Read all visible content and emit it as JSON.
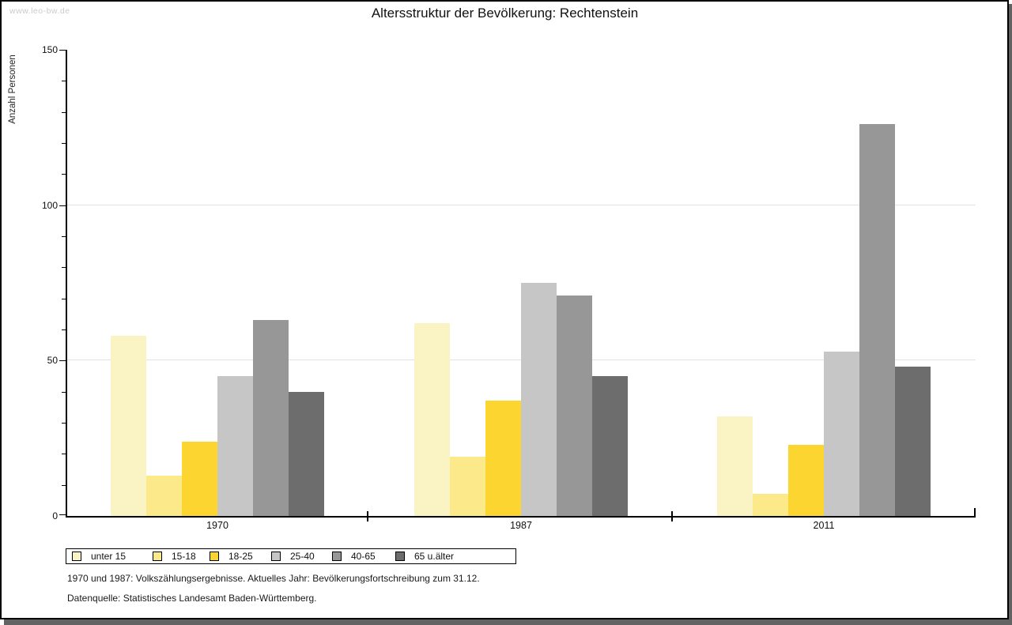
{
  "watermark": "www.leo-bw.de",
  "header": {
    "title": "Altersstruktur der Bevölkerung: Rechtenstein"
  },
  "chart_data": {
    "type": "bar",
    "title": "Altersstruktur der Bevölkerung: Rechtenstein",
    "xlabel": "",
    "ylabel": "Anzahl Personen",
    "categories": [
      "1970",
      "1987",
      "2011"
    ],
    "series": [
      {
        "name": "unter 15",
        "color": "#FAF3C3",
        "values": [
          58,
          62,
          32
        ]
      },
      {
        "name": "15-18",
        "color": "#FCE98A",
        "values": [
          13,
          19,
          7
        ]
      },
      {
        "name": "18-25",
        "color": "#FCD531",
        "values": [
          24,
          37,
          23
        ]
      },
      {
        "name": "25-40",
        "color": "#C6C6C6",
        "values": [
          45,
          75,
          53
        ]
      },
      {
        "name": "40-65",
        "color": "#979797",
        "values": [
          63,
          71,
          126
        ]
      },
      {
        "name": "65 u.älter",
        "color": "#6D6D6D",
        "values": [
          40,
          45,
          48
        ]
      }
    ],
    "ylim": [
      0,
      150
    ],
    "yticks_major": [
      0,
      50,
      100,
      150
    ],
    "ytick_minor_step": 10,
    "gridlines": [
      50,
      100
    ],
    "grid": true,
    "legend_position": "bottom-left",
    "grid_color": "#e2e2e2"
  },
  "footnotes": [
    "1970 und 1987: Volkszählungsergebnisse. Aktuelles Jahr: Bevölkerungsfortschreibung zum 31.12.",
    "Datenquelle: Statistisches Landesamt Baden-Württemberg."
  ]
}
